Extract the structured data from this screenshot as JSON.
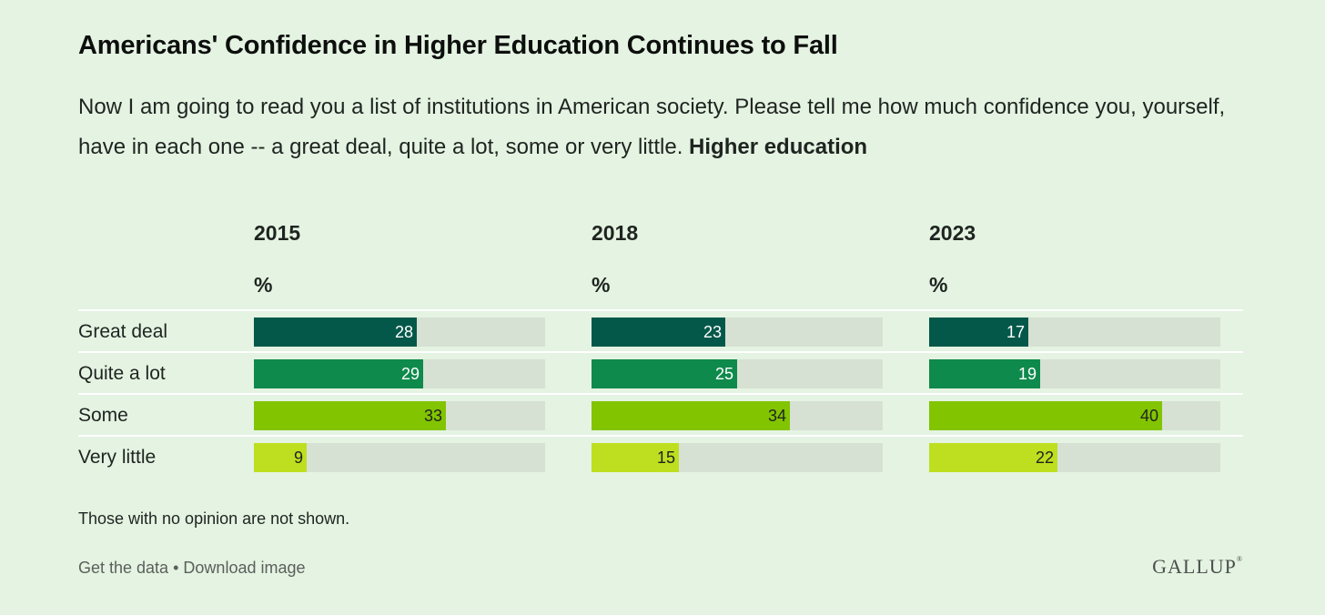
{
  "title": "Americans' Confidence in Higher Education Continues to Fall",
  "subtitle_text": "Now I am going to read you a list of institutions in American society. Please tell me how much confidence you, yourself, have in each one -- a great deal, quite a lot, some or very little.",
  "subtitle_bold": "Higher education",
  "note": "Those with no opinion are not shown.",
  "footer": {
    "get_data": "Get the data",
    "separator": "•",
    "download": "Download image",
    "logo": "GALLUP",
    "logo_mark": "®"
  },
  "colors": {
    "great_deal": "#04584a",
    "quite_a_lot": "#0e8a4c",
    "some": "#82c400",
    "very_little": "#bddf1f",
    "track": "#d6e1d4",
    "background": "#e4f3e2"
  },
  "chart_data": {
    "type": "bar",
    "orientation": "horizontal",
    "unit_label": "%",
    "categories": [
      "Great deal",
      "Quite a lot",
      "Some",
      "Very little"
    ],
    "xlim": [
      0,
      50
    ],
    "panels": [
      {
        "name": "2015",
        "values": [
          28,
          29,
          33,
          9
        ]
      },
      {
        "name": "2018",
        "values": [
          23,
          25,
          34,
          15
        ]
      },
      {
        "name": "2023",
        "values": [
          17,
          19,
          40,
          22
        ]
      }
    ]
  }
}
